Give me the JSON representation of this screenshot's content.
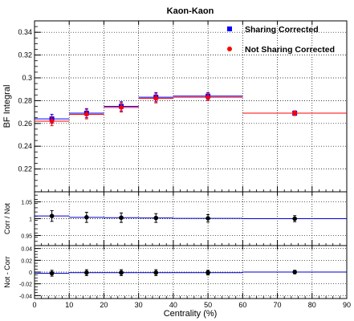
{
  "chart_data": {
    "type": "scatter",
    "title": "Kaon-Kaon",
    "x": [
      5,
      15,
      25,
      35,
      50,
      75
    ],
    "x_bins": [
      [
        0,
        10
      ],
      [
        10,
        20
      ],
      [
        20,
        30
      ],
      [
        30,
        40
      ],
      [
        40,
        60
      ],
      [
        60,
        90
      ]
    ],
    "xlabel": "Centrality (%)",
    "xlim": [
      0,
      90
    ],
    "xticks": [
      "0",
      "10",
      "20",
      "30",
      "40",
      "50",
      "60",
      "70",
      "80",
      "90"
    ],
    "grid": true,
    "legend_position": "top-right",
    "panels": [
      {
        "id": "main",
        "ylabel": "BF Integral",
        "ylim": [
          0.2,
          0.35
        ],
        "yticks": [
          "0.22",
          "0.24",
          "0.26",
          "0.28",
          "0.3",
          "0.32",
          "0.34"
        ],
        "series": [
          {
            "name": "Sharing Corrected",
            "color": "#0000ff",
            "marker": "square",
            "values": [
              0.264,
              0.269,
              0.275,
              0.283,
              0.284,
              0.269
            ],
            "errors": [
              0.004,
              0.004,
              0.004,
              0.004,
              0.003,
              0.002
            ]
          },
          {
            "name": "Not Sharing Corrected",
            "color": "#ff0000",
            "marker": "circle",
            "values": [
              0.262,
              0.268,
              0.274,
              0.282,
              0.283,
              0.269
            ],
            "errors": [
              0.004,
              0.004,
              0.004,
              0.004,
              0.003,
              0.002
            ]
          }
        ]
      },
      {
        "id": "ratio",
        "ylabel": "Corr / Not",
        "ylim": [
          0.92,
          1.08
        ],
        "yticks": [
          "0.95",
          "1",
          "1.05"
        ],
        "series": [
          {
            "name": "",
            "color": "#000000",
            "marker": "circle",
            "values": [
              1.008,
              1.004,
              1.003,
              1.002,
              1.001,
              1.0
            ],
            "errors": [
              0.016,
              0.015,
              0.014,
              0.013,
              0.011,
              0.009
            ]
          }
        ]
      },
      {
        "id": "difference",
        "ylabel": "Not - Corr",
        "ylim": [
          -0.045,
          0.045
        ],
        "yticks": [
          "-0.04",
          "-0.02",
          "0",
          "0.02",
          "0.04"
        ],
        "series": [
          {
            "name": "",
            "color": "#000000",
            "marker": "circle",
            "values": [
              -0.002,
              -0.001,
              -0.001,
              -0.001,
              -0.001,
              0.0
            ],
            "errors": [
              0.005,
              0.005,
              0.005,
              0.005,
              0.004,
              0.003
            ]
          }
        ]
      }
    ]
  }
}
